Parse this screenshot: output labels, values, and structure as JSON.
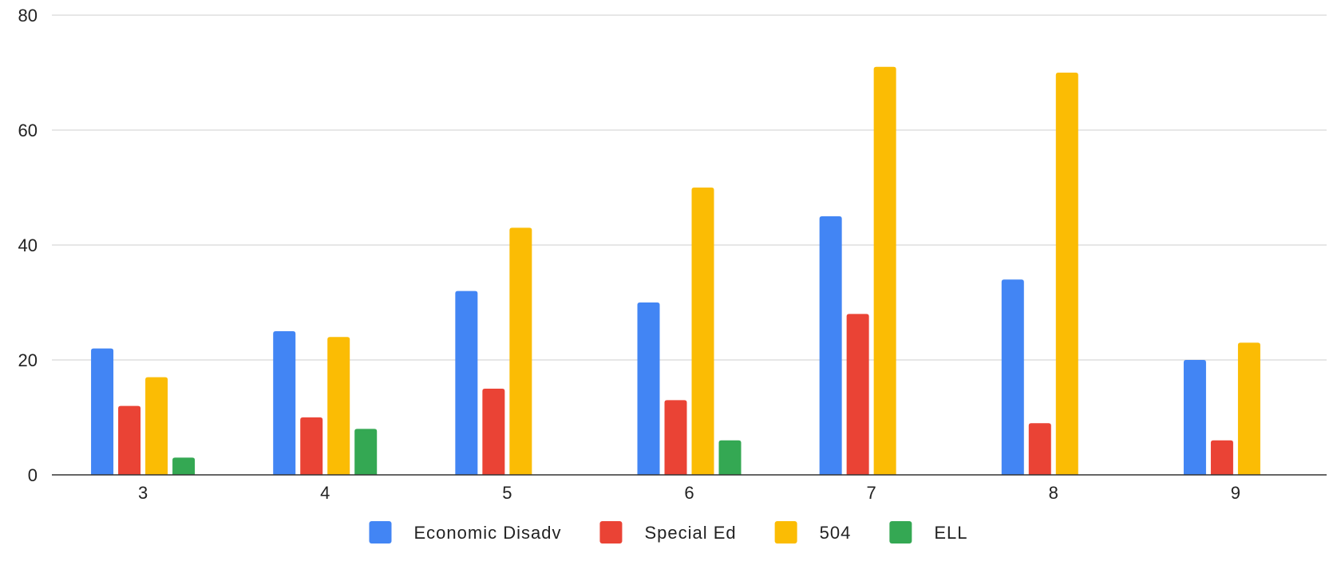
{
  "chart_data": {
    "type": "bar",
    "title": "",
    "xlabel": "",
    "ylabel": "",
    "categories": [
      "3",
      "4",
      "5",
      "6",
      "7",
      "8",
      "9"
    ],
    "series": [
      {
        "name": "Economic Disadv",
        "color": "#4285F4",
        "values": [
          22,
          25,
          32,
          30,
          45,
          34,
          20
        ]
      },
      {
        "name": "Special Ed",
        "color": "#EA4335",
        "values": [
          12,
          10,
          15,
          13,
          28,
          9,
          6
        ]
      },
      {
        "name": "504",
        "color": "#FBBC04",
        "values": [
          17,
          24,
          43,
          50,
          71,
          70,
          23
        ]
      },
      {
        "name": "ELL",
        "color": "#34A853",
        "values": [
          3,
          8,
          null,
          6,
          null,
          null,
          null
        ]
      }
    ],
    "ylim": [
      0,
      80
    ],
    "yticks": [
      0,
      20,
      40,
      60,
      80
    ],
    "grid": true,
    "legend_position": "bottom"
  }
}
